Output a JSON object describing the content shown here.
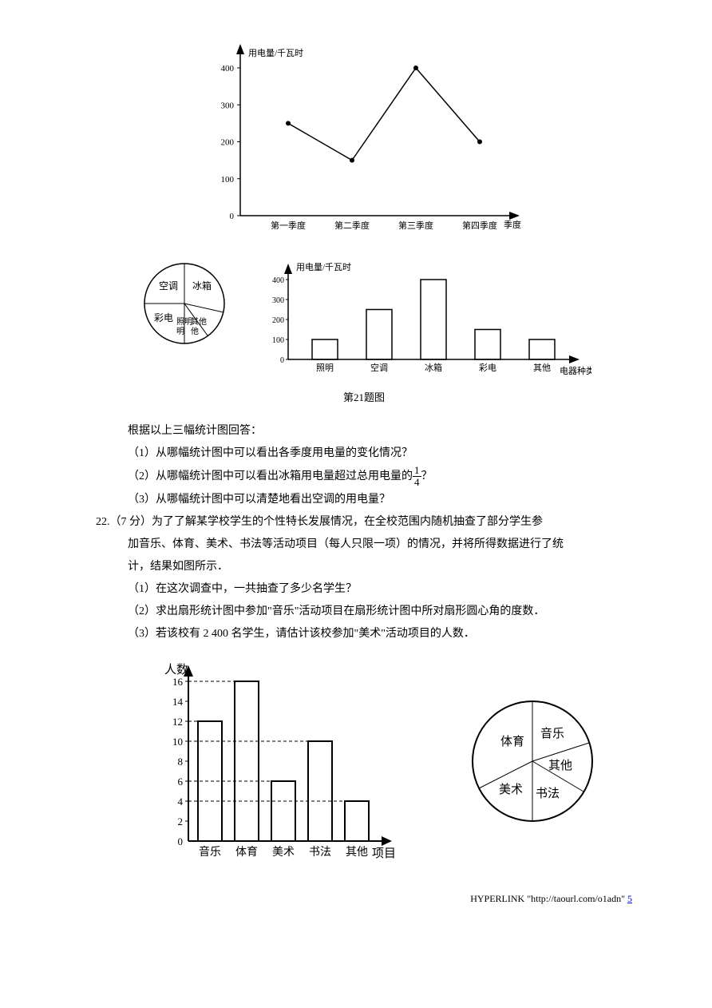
{
  "line_chart": {
    "type": "line",
    "ylabel": "用电量/千瓦时",
    "xlabel": "季度",
    "categories": [
      "第一季度",
      "第二季度",
      "第三季度",
      "第四季度"
    ],
    "yticks": [
      0,
      100,
      200,
      300,
      400
    ],
    "values": [
      250,
      150,
      400,
      200
    ],
    "axis_color": "#000",
    "label_fontsize": 11,
    "title_fontsize": 11
  },
  "pie1": {
    "type": "pie",
    "slices": [
      {
        "label": "空调",
        "value": 90,
        "start": 180
      },
      {
        "label": "冰箱",
        "value": 144,
        "start": 270
      },
      {
        "label": "彩电",
        "value": 54,
        "start": 126
      },
      {
        "label": "照明",
        "value": 36,
        "start": 90
      },
      {
        "label": "其他",
        "value": 36,
        "start": 54
      }
    ],
    "stroke": "#000"
  },
  "bar1": {
    "type": "bar",
    "ylabel": "用电量/千瓦时",
    "xlabel": "电器种类",
    "categories": [
      "照明",
      "空调",
      "冰箱",
      "彩电",
      "其他"
    ],
    "values": [
      100,
      250,
      400,
      150,
      100
    ],
    "yticks": [
      0,
      100,
      200,
      300,
      400
    ],
    "stroke": "#000",
    "label_fontsize": 11
  },
  "caption": "第21题图",
  "intro": "根据以上三幅统计图回答：",
  "q1": "（1）从哪幅统计图中可以看出各季度用电量的变化情况？",
  "q2a": "（2）从哪幅统计图中可以看出冰箱用电量超过总用电量的",
  "q2_frac_n": "1",
  "q2_frac_d": "4",
  "q2b": "？",
  "q3": "（3）从哪幅统计图中可以清楚地看出空调的用电量？",
  "q22_head": "22.（7 分）为了了解某学校学生的个性特长发展情况，在全校范围内随机抽查了部分学生参",
  "q22_l2": "加音乐、体育、美术、书法等活动项目（每人只限一项）的情况，并将所得数据进行了统",
  "q22_l3": "计，结果如图所示．",
  "q22_1": "（1）在这次调查中，一共抽查了多少名学生？",
  "q22_2": "（2）求出扇形统计图中参加\"音乐\"活动项目在扇形统计图中所对扇形圆心角的度数．",
  "q22_3": "（3）若该校有 2 400 名学生，请估计该校参加\"美术\"活动项目的人数．",
  "bar2": {
    "type": "bar",
    "ylabel": "人数",
    "xlabel": "项目",
    "categories": [
      "音乐",
      "体育",
      "美术",
      "书法",
      "其他"
    ],
    "values": [
      12,
      16,
      6,
      10,
      4
    ],
    "yticks": [
      0,
      2,
      4,
      6,
      8,
      10,
      12,
      14,
      16
    ],
    "stroke": "#000",
    "dash": "4 3",
    "label_fontsize": 14
  },
  "pie2": {
    "type": "pie",
    "slices": [
      {
        "label": "体育"
      },
      {
        "label": "音乐"
      },
      {
        "label": "其他"
      },
      {
        "label": "书法"
      },
      {
        "label": "美术"
      }
    ],
    "stroke": "#000"
  },
  "footer_text": "HYPERLINK \"http://taourl.com/o1adn\" ",
  "footer_page": "5"
}
